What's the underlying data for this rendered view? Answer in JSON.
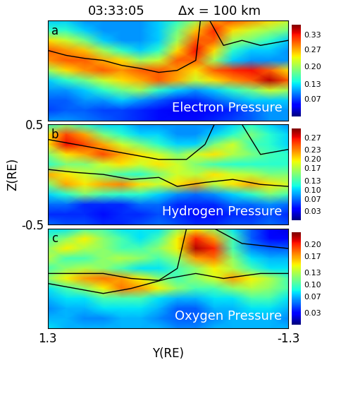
{
  "header": {
    "time": "03:33:05",
    "resolution": "Δx = 100 km"
  },
  "chart_data": [
    {
      "type": "heatmap",
      "label": "a",
      "title": "Electron Pressure",
      "tick_labels": false,
      "xlim": [
        1.3,
        -1.3
      ],
      "ylim": [
        -0.5,
        0.5
      ],
      "x": [
        1.3,
        1.1,
        0.9,
        0.7,
        0.5,
        0.3,
        0.1,
        -0.1,
        -0.3,
        -0.5,
        -0.7,
        -0.9,
        -1.1,
        -1.3
      ],
      "y": [
        0.5,
        0.4,
        0.3,
        0.2,
        0.1,
        0.0,
        -0.1,
        -0.2,
        -0.3,
        -0.4,
        -0.5
      ],
      "cells": [
        [
          0.12,
          0.12,
          0.1,
          0.1,
          0.1,
          0.1,
          0.12,
          0.15,
          0.2,
          0.28,
          0.3,
          0.28,
          0.25,
          0.22
        ],
        [
          0.15,
          0.15,
          0.12,
          0.1,
          0.1,
          0.1,
          0.12,
          0.18,
          0.26,
          0.32,
          0.25,
          0.22,
          0.2,
          0.18
        ],
        [
          0.25,
          0.22,
          0.18,
          0.12,
          0.1,
          0.1,
          0.12,
          0.2,
          0.3,
          0.3,
          0.2,
          0.18,
          0.15,
          0.12
        ],
        [
          0.3,
          0.28,
          0.26,
          0.2,
          0.15,
          0.12,
          0.15,
          0.25,
          0.33,
          0.25,
          0.15,
          0.12,
          0.12,
          0.1
        ],
        [
          0.28,
          0.3,
          0.3,
          0.27,
          0.25,
          0.2,
          0.22,
          0.3,
          0.3,
          0.2,
          0.12,
          0.1,
          0.1,
          0.1
        ],
        [
          0.2,
          0.25,
          0.28,
          0.3,
          0.28,
          0.3,
          0.3,
          0.28,
          0.25,
          0.3,
          0.32,
          0.33,
          0.3,
          0.25
        ],
        [
          0.12,
          0.15,
          0.18,
          0.22,
          0.25,
          0.27,
          0.3,
          0.27,
          0.22,
          0.25,
          0.28,
          0.3,
          0.35,
          0.3
        ],
        [
          0.1,
          0.1,
          0.12,
          0.15,
          0.18,
          0.2,
          0.15,
          0.12,
          0.1,
          0.12,
          0.15,
          0.18,
          0.22,
          0.2
        ],
        [
          0.08,
          0.08,
          0.1,
          0.1,
          0.12,
          0.1,
          0.08,
          0.06,
          0.06,
          0.08,
          0.1,
          0.12,
          0.12,
          0.12
        ],
        [
          0.07,
          0.08,
          0.08,
          0.07,
          0.07,
          0.06,
          0.05,
          0.04,
          0.04,
          0.05,
          0.06,
          0.08,
          0.1,
          0.1
        ],
        [
          0.1,
          0.1,
          0.09,
          0.08,
          0.07,
          0.06,
          0.05,
          0.05,
          0.05,
          0.06,
          0.07,
          0.08,
          0.1,
          0.1
        ]
      ],
      "colorbar": {
        "range": [
          0,
          0.37
        ],
        "ticks": [
          0.07,
          0.13,
          {
            "value": 0.2,
            "label": "0.20"
          },
          0.27,
          0.33
        ]
      },
      "contours": [
        {
          "x": [
            1.3,
            1.1,
            0.9,
            0.7,
            0.5,
            0.3,
            0.1,
            -0.1,
            -0.3,
            -0.35
          ],
          "y": [
            0.2,
            0.15,
            0.12,
            0.1,
            0.05,
            0.02,
            -0.02,
            0.0,
            0.1,
            0.5
          ]
        },
        {
          "x": [
            -0.45,
            -0.6,
            -0.8,
            -1.0,
            -1.3
          ],
          "y": [
            0.5,
            0.25,
            0.3,
            0.25,
            0.3
          ]
        }
      ]
    },
    {
      "type": "heatmap",
      "label": "b",
      "title": "Hydrogen Pressure",
      "tick_labels": "y",
      "ylabel": "Z(RE)",
      "xlim": [
        1.3,
        -1.3
      ],
      "ylim": [
        -0.5,
        0.5
      ],
      "yticks": [
        -0.5,
        0.5
      ],
      "x": [
        1.3,
        1.1,
        0.9,
        0.7,
        0.5,
        0.3,
        0.1,
        -0.1,
        -0.3,
        -0.5,
        -0.7,
        -0.9,
        -1.1,
        -1.3
      ],
      "y": [
        0.5,
        0.4,
        0.3,
        0.2,
        0.1,
        0.0,
        -0.1,
        -0.2,
        -0.3,
        -0.4,
        -0.5
      ],
      "cells": [
        [
          0.12,
          0.15,
          0.12,
          0.1,
          0.1,
          0.08,
          0.08,
          0.08,
          0.08,
          0.08,
          0.1,
          0.12,
          0.1,
          0.08
        ],
        [
          0.2,
          0.25,
          0.22,
          0.15,
          0.12,
          0.1,
          0.1,
          0.08,
          0.08,
          0.1,
          0.12,
          0.15,
          0.12,
          0.1
        ],
        [
          0.2,
          0.27,
          0.25,
          0.22,
          0.18,
          0.15,
          0.12,
          0.1,
          0.1,
          0.15,
          0.18,
          0.13,
          0.12,
          0.1
        ],
        [
          0.15,
          0.2,
          0.22,
          0.25,
          0.22,
          0.2,
          0.18,
          0.15,
          0.18,
          0.2,
          0.17,
          0.15,
          0.13,
          0.12
        ],
        [
          0.12,
          0.15,
          0.15,
          0.18,
          0.2,
          0.18,
          0.2,
          0.18,
          0.15,
          0.13,
          0.12,
          0.12,
          0.12,
          0.12
        ],
        [
          0.22,
          0.2,
          0.18,
          0.15,
          0.13,
          0.12,
          0.15,
          0.18,
          0.17,
          0.2,
          0.18,
          0.17,
          0.15,
          0.15
        ],
        [
          0.15,
          0.22,
          0.2,
          0.22,
          0.23,
          0.2,
          0.18,
          0.2,
          0.22,
          0.17,
          0.2,
          0.22,
          0.2,
          0.18
        ],
        [
          0.1,
          0.12,
          0.15,
          0.13,
          0.12,
          0.12,
          0.1,
          0.08,
          0.07,
          0.08,
          0.1,
          0.12,
          0.15,
          0.13
        ],
        [
          0.07,
          0.07,
          0.05,
          0.05,
          0.05,
          0.07,
          0.07,
          0.05,
          0.05,
          0.05,
          0.07,
          0.07,
          0.08,
          0.07
        ],
        [
          0.05,
          0.05,
          0.05,
          0.04,
          0.05,
          0.05,
          0.06,
          0.05,
          0.04,
          0.04,
          0.05,
          0.05,
          0.06,
          0.05
        ],
        [
          0.07,
          0.06,
          0.06,
          0.05,
          0.05,
          0.06,
          0.07,
          0.06,
          0.05,
          0.05,
          0.06,
          0.06,
          0.07,
          0.06
        ]
      ],
      "colorbar": {
        "range": [
          0,
          0.3
        ],
        "ticks": [
          0.03,
          0.07,
          {
            "value": 0.1,
            "label": "0.10"
          },
          0.13,
          0.17,
          {
            "value": 0.2,
            "label": "0.20"
          },
          0.23,
          0.27
        ]
      },
      "contours": [
        {
          "x": [
            1.3,
            1.0,
            0.7,
            0.4,
            0.1,
            -0.2,
            -0.4,
            -0.5
          ],
          "y": [
            0.35,
            0.3,
            0.25,
            0.2,
            0.15,
            0.15,
            0.3,
            0.5
          ]
        },
        {
          "x": [
            1.3,
            1.0,
            0.7,
            0.4,
            0.1,
            -0.1,
            -0.4,
            -0.7,
            -1.0,
            -1.3
          ],
          "y": [
            0.05,
            0.02,
            0.0,
            -0.05,
            -0.03,
            -0.12,
            -0.08,
            -0.05,
            -0.1,
            -0.12
          ]
        },
        {
          "x": [
            -0.8,
            -1.0,
            -1.3
          ],
          "y": [
            0.5,
            0.2,
            0.25
          ]
        }
      ]
    },
    {
      "type": "heatmap",
      "label": "c",
      "title": "Oxygen Pressure",
      "tick_labels": "x",
      "xlabel": "Y(RE)",
      "xlim": [
        1.3,
        -1.3
      ],
      "ylim": [
        -0.5,
        0.5
      ],
      "xticks": [
        1.3,
        -1.3
      ],
      "x": [
        1.3,
        1.1,
        0.9,
        0.7,
        0.5,
        0.3,
        0.1,
        -0.1,
        -0.3,
        -0.5,
        -0.7,
        -0.9,
        -1.1,
        -1.3
      ],
      "y": [
        0.5,
        0.4,
        0.3,
        0.2,
        0.1,
        0.0,
        -0.1,
        -0.2,
        -0.3,
        -0.4,
        -0.5
      ],
      "cells": [
        [
          0.08,
          0.08,
          0.1,
          0.1,
          0.08,
          0.08,
          0.08,
          0.12,
          0.15,
          0.12,
          0.08,
          0.05,
          0.03,
          0.02
        ],
        [
          0.1,
          0.12,
          0.15,
          0.12,
          0.1,
          0.08,
          0.1,
          0.15,
          0.2,
          0.17,
          0.1,
          0.05,
          0.03,
          0.03
        ],
        [
          0.12,
          0.15,
          0.13,
          0.12,
          0.1,
          0.1,
          0.12,
          0.15,
          0.22,
          0.2,
          0.1,
          0.06,
          0.05,
          0.05
        ],
        [
          0.13,
          0.1,
          0.1,
          0.12,
          0.13,
          0.12,
          0.1,
          0.12,
          0.17,
          0.18,
          0.12,
          0.08,
          0.07,
          0.07
        ],
        [
          0.1,
          0.12,
          0.13,
          0.12,
          0.1,
          0.08,
          0.08,
          0.1,
          0.12,
          0.15,
          0.13,
          0.1,
          0.08,
          0.08
        ],
        [
          0.12,
          0.15,
          0.17,
          0.18,
          0.17,
          0.15,
          0.12,
          0.1,
          0.12,
          0.14,
          0.17,
          0.15,
          0.13,
          0.1
        ],
        [
          0.08,
          0.1,
          0.12,
          0.15,
          0.18,
          0.17,
          0.15,
          0.12,
          0.1,
          0.1,
          0.12,
          0.13,
          0.12,
          0.1
        ],
        [
          0.07,
          0.08,
          0.08,
          0.1,
          0.1,
          0.1,
          0.08,
          0.07,
          0.07,
          0.08,
          0.08,
          0.1,
          0.1,
          0.08
        ],
        [
          0.06,
          0.07,
          0.07,
          0.08,
          0.08,
          0.08,
          0.07,
          0.05,
          0.05,
          0.07,
          0.07,
          0.08,
          0.08,
          0.07
        ],
        [
          0.07,
          0.07,
          0.06,
          0.06,
          0.07,
          0.07,
          0.06,
          0.05,
          0.05,
          0.06,
          0.07,
          0.07,
          0.07,
          0.06
        ],
        [
          0.08,
          0.07,
          0.07,
          0.07,
          0.07,
          0.07,
          0.07,
          0.06,
          0.06,
          0.07,
          0.07,
          0.07,
          0.07,
          0.07
        ]
      ],
      "colorbar": {
        "range": [
          0,
          0.23
        ],
        "ticks": [
          0.03,
          0.07,
          {
            "value": 0.1,
            "label": "0.10"
          },
          0.13,
          0.17,
          {
            "value": 0.2,
            "label": "0.20"
          }
        ]
      },
      "contours": [
        {
          "x": [
            1.3,
            1.0,
            0.7,
            0.4,
            0.1,
            -0.1,
            -0.2
          ],
          "y": [
            0.05,
            0.05,
            0.05,
            0.0,
            -0.02,
            0.1,
            0.5
          ]
        },
        {
          "x": [
            1.3,
            1.0,
            0.7,
            0.4,
            0.2,
            0.0,
            -0.3,
            -0.6,
            -1.0,
            -1.3
          ],
          "y": [
            -0.05,
            -0.1,
            -0.15,
            -0.1,
            -0.05,
            0.0,
            0.05,
            0.0,
            0.05,
            0.05
          ]
        },
        {
          "x": [
            -0.5,
            -0.8,
            -1.3
          ],
          "y": [
            0.5,
            0.35,
            0.3
          ]
        }
      ]
    }
  ]
}
